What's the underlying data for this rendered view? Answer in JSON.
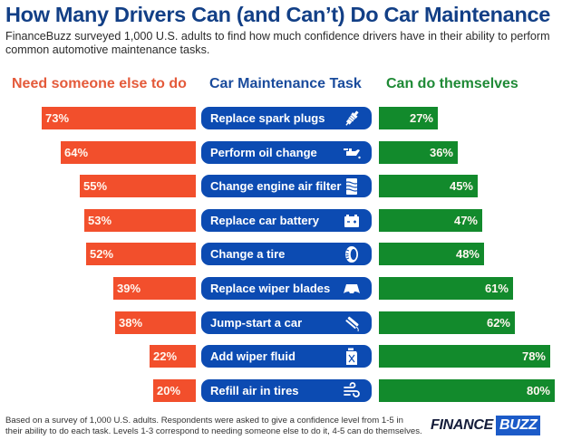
{
  "header": {
    "title": "How Many Drivers Can (and Can’t) Do Car Maintenance",
    "subtitle": "FinanceBuzz surveyed 1,000 U.S. adults to find how much confidence drivers have in their ability to perform common automotive maintenance tasks."
  },
  "columns": {
    "left": "Need someone else to do",
    "middle": "Car Maintenance Task",
    "right": "Can do themselves"
  },
  "colors": {
    "need_help": "#f24f2c",
    "task": "#0c4bb2",
    "can_do": "#128a2c",
    "title": "#123f86"
  },
  "chart_data": {
    "type": "bar",
    "title": "How Many Drivers Can (and Can’t) Do Car Maintenance",
    "xlabel": "",
    "ylabel": "",
    "unit": "%",
    "categories": [
      "Replace spark plugs",
      "Perform oil change",
      "Change engine air filter",
      "Replace car battery",
      "Change a tire",
      "Replace wiper blades",
      "Jump-start a car",
      "Add wiper fluid",
      "Refill air in tires"
    ],
    "icons": [
      "spark-plug-icon",
      "oil-can-icon",
      "air-filter-icon",
      "car-battery-icon",
      "tire-icon",
      "wiper-blade-icon",
      "jumper-cables-icon",
      "fluid-jug-icon",
      "air-wind-icon"
    ],
    "series": [
      {
        "name": "Need someone else to do",
        "values": [
          73,
          64,
          55,
          53,
          52,
          39,
          38,
          22,
          20
        ]
      },
      {
        "name": "Can do themselves",
        "values": [
          27,
          36,
          45,
          47,
          48,
          61,
          62,
          78,
          80
        ]
      }
    ],
    "xlim": [
      0,
      100
    ],
    "legend": "top"
  },
  "footer": {
    "note": "Based on a survey of 1,000 U.S. adults. Respondents were asked to give a confidence level from 1-5 in their ability to do each task. Levels 1-3 correspond to needing someone else to do it, 4-5 can do themselves.",
    "logo_part1": "FINANCE",
    "logo_part2": "BUZZ"
  }
}
